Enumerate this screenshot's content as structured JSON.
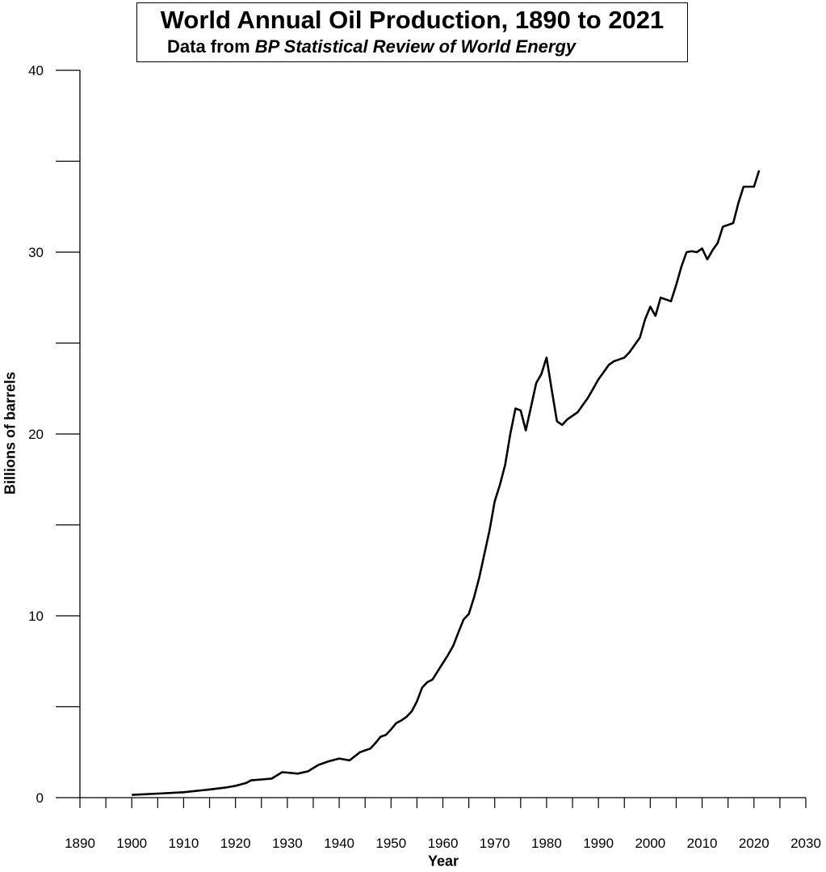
{
  "chart_data": {
    "type": "line",
    "title": "World Annual Oil Production, 1890 to 2021",
    "subtitle_prefix": "Data from ",
    "subtitle_source": "BP Statistical Review of World Energy",
    "xlabel": "Year",
    "ylabel": "Billions of barrels",
    "xlim": [
      1890,
      2030
    ],
    "ylim": [
      0,
      40
    ],
    "x_ticks": [
      1890,
      1900,
      1910,
      1920,
      1930,
      1940,
      1950,
      1960,
      1970,
      1980,
      1990,
      2000,
      2010,
      2020,
      2030
    ],
    "x_minor_step": 5,
    "y_ticks": [
      0,
      10,
      20,
      30,
      40
    ],
    "y_minor_step": 5,
    "grid": false,
    "line_color": "#000000",
    "series": [
      {
        "x": [
          1900,
          1905,
          1910,
          1915,
          1918,
          1920,
          1922,
          1923,
          1925,
          1927,
          1929,
          1930,
          1932,
          1934,
          1936,
          1938,
          1940,
          1942,
          1944,
          1945,
          1946,
          1947,
          1948,
          1949,
          1950,
          1951,
          1952,
          1953,
          1954,
          1955,
          1956,
          1957,
          1958,
          1959,
          1960,
          1961,
          1962,
          1963,
          1964,
          1965,
          1966,
          1967,
          1968,
          1969,
          1970,
          1971,
          1972,
          1973,
          1974,
          1975,
          1976,
          1977,
          1978,
          1979,
          1980,
          1981,
          1982,
          1983,
          1984,
          1985,
          1986,
          1987,
          1988,
          1989,
          1990,
          1991,
          1992,
          1993,
          1994,
          1995,
          1996,
          1997,
          1998,
          1999,
          2000,
          2001,
          2002,
          2003,
          2004,
          2005,
          2006,
          2007,
          2008,
          2009,
          2010,
          2011,
          2012,
          2013,
          2014,
          2015,
          2016,
          2017,
          2018,
          2019,
          2020,
          2021
        ],
        "y": [
          0.15,
          0.22,
          0.3,
          0.45,
          0.55,
          0.65,
          0.8,
          0.95,
          1.0,
          1.05,
          1.4,
          1.38,
          1.32,
          1.45,
          1.8,
          2.0,
          2.15,
          2.05,
          2.5,
          2.6,
          2.7,
          3.0,
          3.35,
          3.45,
          3.75,
          4.1,
          4.25,
          4.45,
          4.75,
          5.3,
          6.05,
          6.35,
          6.5,
          6.95,
          7.4,
          7.85,
          8.35,
          9.1,
          9.8,
          10.1,
          11.0,
          12.1,
          13.4,
          14.7,
          16.3,
          17.2,
          18.3,
          20.0,
          21.4,
          21.3,
          20.2,
          21.5,
          22.8,
          23.3,
          24.2,
          22.4,
          20.7,
          20.5,
          20.8,
          21.0,
          21.2,
          21.6,
          22.0,
          22.5,
          23.0,
          23.4,
          23.8,
          24.0,
          24.1,
          24.2,
          24.5,
          24.9,
          25.3,
          26.3,
          27.0,
          26.5,
          27.5,
          27.4,
          27.3,
          28.2,
          29.2,
          30.0,
          30.05,
          30.0,
          30.2,
          29.6,
          30.1,
          30.5,
          31.4,
          31.5,
          31.6,
          32.7,
          33.6,
          33.6,
          33.6,
          34.5
        ]
      }
    ]
  }
}
